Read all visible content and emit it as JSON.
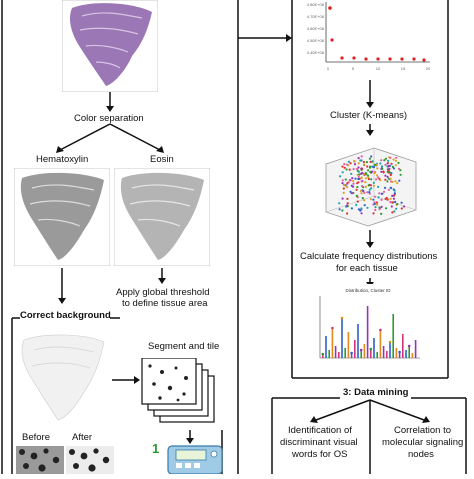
{
  "left_panel": {
    "steps": {
      "color_separation": "Color separation",
      "hematoxylin": "Hematoxylin",
      "eosin": "Eosin",
      "threshold": [
        "Apply global threshold",
        "to define tissue area"
      ],
      "correct_background": "Correct background",
      "segment_and_tile": "Segment and tile",
      "before": "Before",
      "after": "After",
      "step_badge": "1"
    }
  },
  "right_panel": {
    "scatter_ticks_y": [
      "4.80E+08",
      "4.70E+08",
      "4.60E+08",
      "4.50E+08",
      "4.40E+08"
    ],
    "scatter_ticks_x": [
      "0",
      "5",
      "10",
      "15",
      "20"
    ],
    "cluster": "Cluster (K-means)",
    "frequency": [
      "Calculate frequency distributions",
      "for each tissue"
    ],
    "hist_title": "Distribution, Cluster ID"
  },
  "data_mining": {
    "title": "3: Data mining",
    "items": [
      [
        "Identification of",
        "discriminant visual",
        "words for OS"
      ],
      [
        "Correlation to",
        "molecular signaling",
        "nodes"
      ]
    ]
  },
  "colors": {
    "he_stain": "#8a5fa8",
    "hist_pink": "#d0347a",
    "hist_orange": "#e08a1e",
    "scatter_red": "#e02020"
  }
}
